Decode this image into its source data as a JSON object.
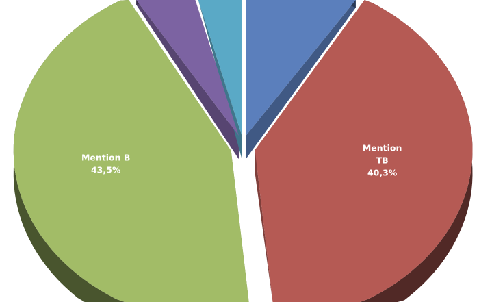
{
  "chart_data": {
    "type": "pie",
    "style": "3d-exploded",
    "title": "",
    "slices": [
      {
        "label": "",
        "value": 8.4,
        "color": "#5b7fbc",
        "shown_label": false
      },
      {
        "label": "Mention TB",
        "label_lines": [
          "Mention",
          "TB"
        ],
        "value": 40.3,
        "value_text": "40,3%",
        "color": "#b55a54",
        "shown_label": true
      },
      {
        "label": "Mention B",
        "label_lines": [
          "Mention B"
        ],
        "value": 43.5,
        "value_text": "43,5%",
        "color": "#a2bc67",
        "shown_label": true
      },
      {
        "label": "",
        "value": 4.6,
        "color": "#7c63a2",
        "shown_label": false
      },
      {
        "label": "",
        "value": 3.2,
        "color": "#5aa9c6",
        "shown_label": false
      }
    ],
    "start_angle": "top, clockwise",
    "legend": "none"
  }
}
